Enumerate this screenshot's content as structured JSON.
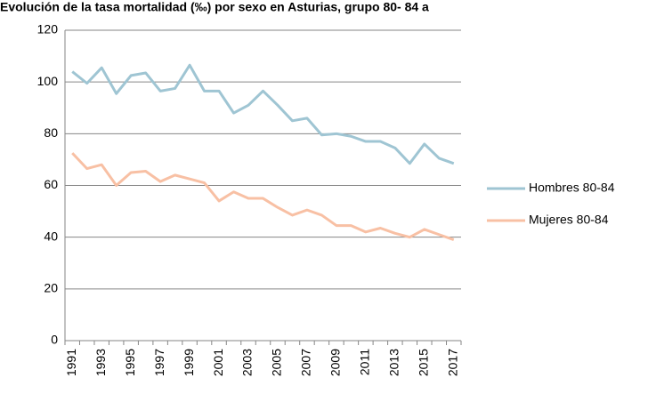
{
  "chart_data": {
    "type": "line",
    "title": "Evolución de la tasa mortalidad (‰) por sexo en Asturias, grupo 80- 84 a",
    "categories": [
      "1991",
      null,
      "1993",
      null,
      "1995",
      null,
      "1997",
      null,
      "1999",
      null,
      "2001",
      null,
      "2003",
      null,
      "2005",
      null,
      "2007",
      null,
      "2009",
      null,
      "2011",
      null,
      "2013",
      null,
      "2015",
      null,
      "2017"
    ],
    "series": [
      {
        "name": "Hombres 80-84",
        "color": "#9fc5d3",
        "values": [
          104,
          99.5,
          105.5,
          95.5,
          102.5,
          103.5,
          96.5,
          97.5,
          106.5,
          96.5,
          96.5,
          88,
          91,
          96.5,
          91,
          85,
          86,
          79.5,
          80,
          79,
          77,
          77,
          74.5,
          68.5,
          76,
          70.5,
          68.5
        ]
      },
      {
        "name": "Mujeres 80-84",
        "color": "#f8c0a4",
        "values": [
          72.5,
          66.5,
          68,
          60,
          65,
          65.5,
          61.5,
          64,
          62.5,
          61,
          54,
          57.5,
          55,
          55,
          51.5,
          48.5,
          50.5,
          48.5,
          44.5,
          44.5,
          42,
          43.5,
          41.5,
          40,
          43,
          41,
          39
        ]
      }
    ],
    "ylim": [
      0,
      120
    ],
    "yticks": [
      0,
      20,
      40,
      60,
      80,
      100,
      120
    ],
    "grid": true,
    "legend": "right"
  }
}
